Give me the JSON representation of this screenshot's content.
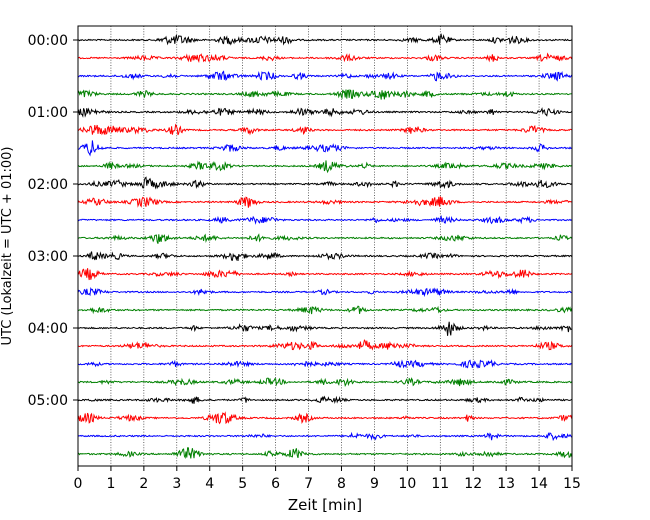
{
  "chart_data": {
    "type": "line",
    "title": "",
    "xlabel": "Zeit  [min]",
    "ylabel": "UTC (Lokalzeit = UTC + 01:00)",
    "xlim": [
      0,
      15
    ],
    "x_ticks": [
      "0",
      "1",
      "2",
      "3",
      "4",
      "5",
      "6",
      "7",
      "8",
      "9",
      "10",
      "11",
      "12",
      "13",
      "14",
      "15"
    ],
    "y_tick_labels": [
      "00:00",
      "01:00",
      "02:00",
      "03:00",
      "04:00",
      "05:00"
    ],
    "grid": "vertical dotted",
    "trace_interval_minutes": 15,
    "trace_count": 24,
    "colors": [
      "#000000",
      "#ff0000",
      "#0000ff",
      "#008000"
    ]
  }
}
